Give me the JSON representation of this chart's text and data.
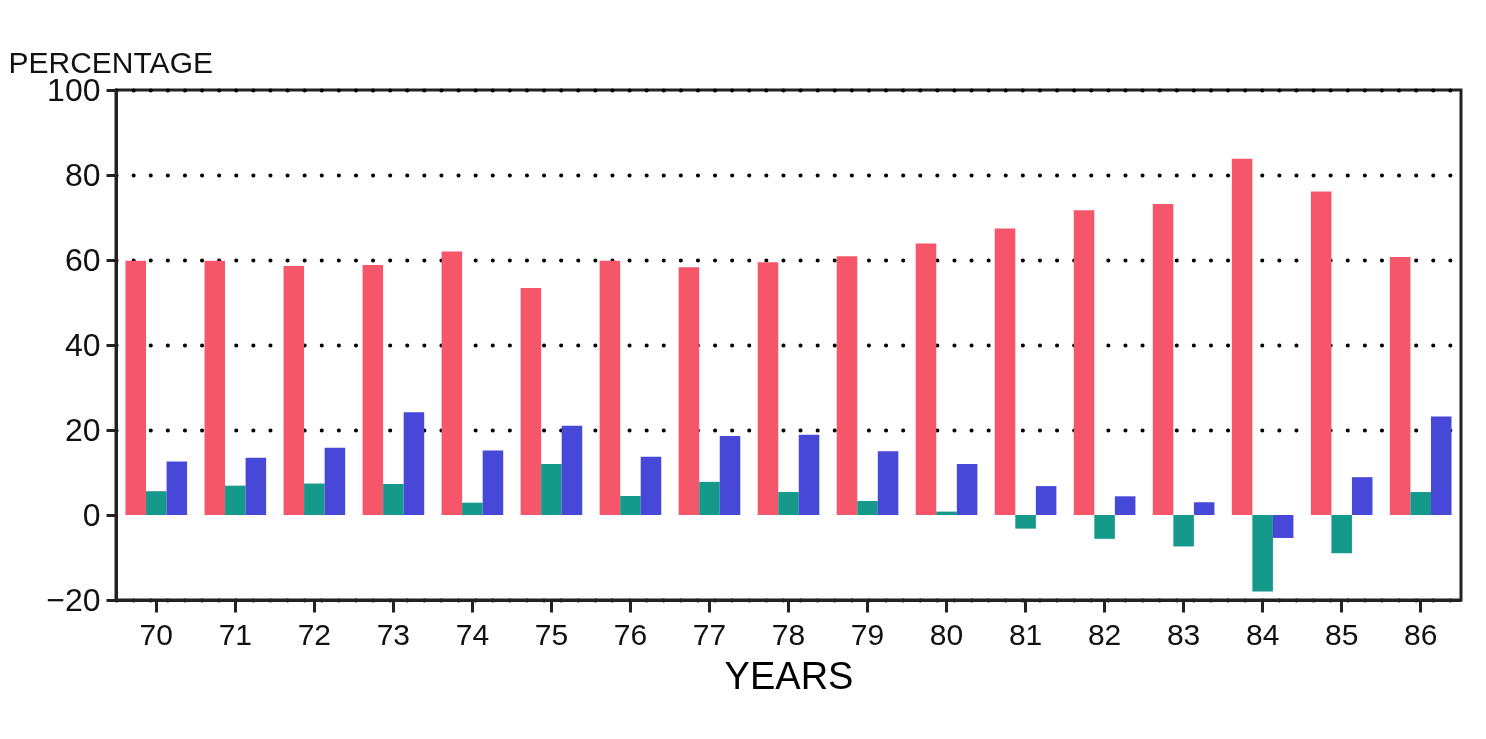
{
  "chart_data": {
    "type": "bar",
    "ylabel": "PERCENTAGE",
    "xlabel": "YEARS",
    "categories": [
      "70",
      "71",
      "72",
      "73",
      "74",
      "75",
      "76",
      "77",
      "78",
      "79",
      "80",
      "81",
      "82",
      "83",
      "84",
      "85",
      "86"
    ],
    "series": [
      {
        "color": "#f5566a",
        "values": [
          59.8,
          59.8,
          58.6,
          58.8,
          62,
          53.4,
          59.8,
          58.3,
          59.5,
          60.9,
          63.9,
          67.4,
          71.7,
          73.2,
          83.8,
          76.1,
          60.7
        ]
      },
      {
        "color": "#14998a",
        "values": [
          5.6,
          6.9,
          7.4,
          7.3,
          2.9,
          12,
          4.5,
          7.8,
          5.4,
          3.3,
          0.8,
          -3.2,
          -5.6,
          -7.4,
          -18,
          -9,
          5.4
        ]
      },
      {
        "color": "#4747d8",
        "values": [
          12.6,
          13.5,
          15.8,
          24.2,
          15.2,
          21,
          13.7,
          18.6,
          18.9,
          15,
          12,
          6.8,
          4.4,
          3,
          -5.4,
          8.9,
          23.2
        ]
      }
    ],
    "ylim": [
      -20,
      100
    ],
    "yticks": [
      -20,
      0,
      20,
      40,
      60,
      80,
      100
    ],
    "grid": "y"
  }
}
